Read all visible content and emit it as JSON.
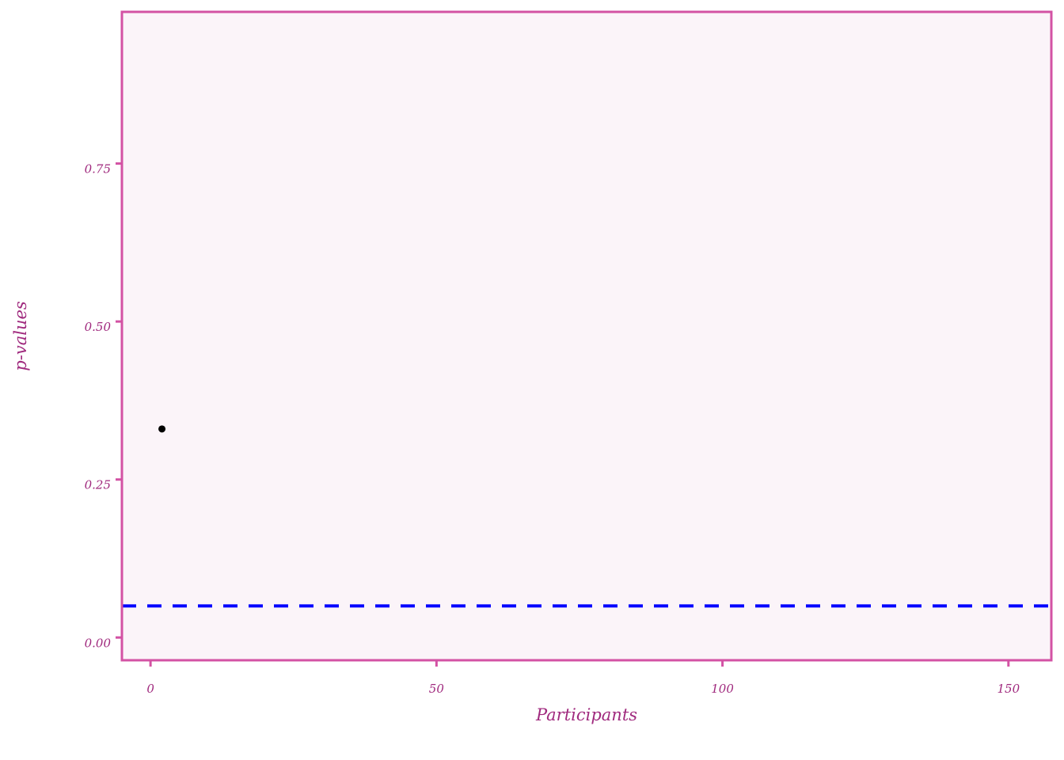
{
  "chart_data": {
    "type": "scatter",
    "title": "",
    "xlabel": "Participants",
    "ylabel": "p-values",
    "xlim": [
      -5,
      157.5
    ],
    "ylim": [
      -0.036,
      0.99
    ],
    "x_ticks": [
      0,
      50,
      100,
      150
    ],
    "x_tick_labels": [
      "0",
      "50",
      "100",
      "150"
    ],
    "y_ticks": [
      0,
      0.25,
      0.5,
      0.75
    ],
    "y_tick_labels": [
      "0.00",
      "0.25",
      "0.50",
      "0.75"
    ],
    "points": [
      {
        "x": 2,
        "y": 0.33
      }
    ],
    "reference_lines": [
      {
        "orientation": "horizontal",
        "y": 0.05,
        "style": "dashed",
        "color": "#0000ff"
      }
    ],
    "grid": false,
    "legend": "none"
  },
  "colors": {
    "frame": "#d352a4",
    "panel_background": "#fbf4f9",
    "text": "#a02a7e",
    "point": "#000000",
    "reference_line": "#0000ff"
  }
}
